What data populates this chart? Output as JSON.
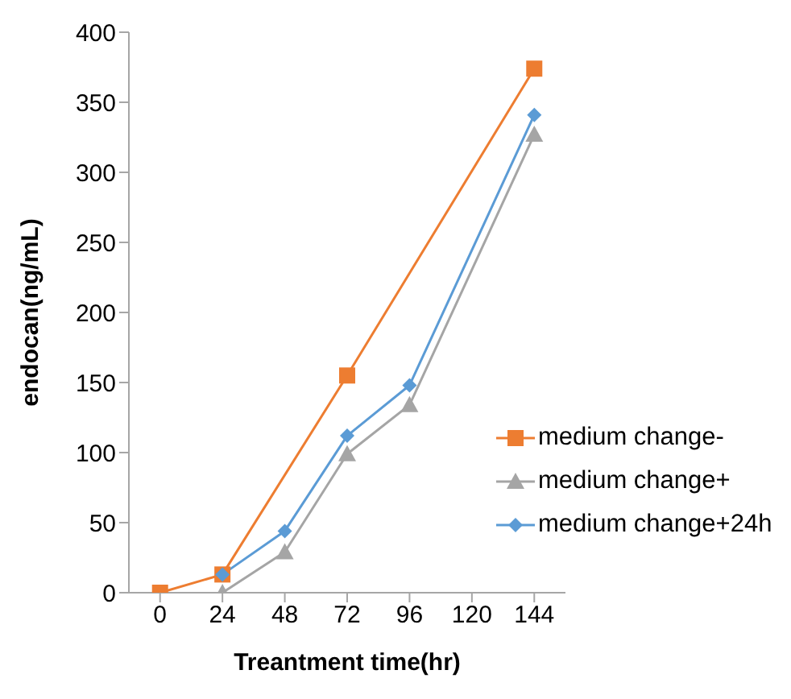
{
  "chart_data": {
    "type": "line",
    "xlabel": "Treantment time(hr)",
    "ylabel": "endocan(ng/mL)",
    "xlim": [
      -12,
      156
    ],
    "xticks": [
      0,
      24,
      48,
      72,
      96,
      120,
      144
    ],
    "ylim": [
      0,
      400
    ],
    "yticks": [
      0,
      50,
      100,
      150,
      200,
      250,
      300,
      350,
      400
    ],
    "grid": false,
    "legend": "right",
    "line_style": "solid",
    "series": [
      {
        "name": "medium change-",
        "color": "#ed7d31",
        "marker": "square",
        "x": [
          0,
          24,
          72,
          144
        ],
        "values": [
          0,
          13,
          155,
          374
        ]
      },
      {
        "name": "medium change+",
        "color": "#a5a5a5",
        "marker": "triangle",
        "x": [
          24,
          48,
          72,
          96,
          144
        ],
        "values": [
          0,
          29,
          99,
          134,
          327
        ]
      },
      {
        "name": "medium change+24h",
        "color": "#5b9bd5",
        "marker": "diamond",
        "x": [
          24,
          48,
          72,
          96,
          144
        ],
        "values": [
          13,
          44,
          112,
          148,
          341
        ]
      }
    ]
  }
}
